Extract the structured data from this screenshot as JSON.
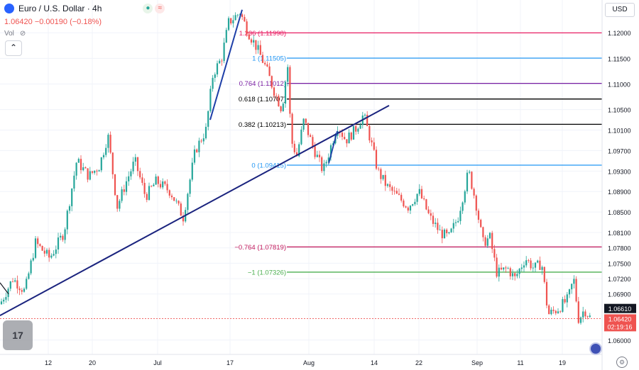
{
  "header": {
    "symbol": "Euro / U.S. Dollar · 4h",
    "price": "1.06420",
    "change": "−0.00190 (−0.18%)",
    "vol_label": "Vol",
    "currency": "USD",
    "badge_icons": [
      "market-open-icon",
      "wave-icon"
    ]
  },
  "chart_data": {
    "type": "candlestick",
    "x_tick_labels": [
      "12",
      "20",
      "Jul",
      "17",
      "Aug",
      "14",
      "22",
      "Sep",
      "11",
      "19"
    ],
    "y_tick_labels": [
      "1.12000",
      "1.11500",
      "1.11000",
      "1.10500",
      "1.10100",
      "1.09700",
      "1.09300",
      "1.08900",
      "1.08500",
      "1.08100",
      "1.07800",
      "1.07500",
      "1.07200",
      "1.06900",
      "1.06000"
    ],
    "y_ticks": [
      1.12,
      1.115,
      1.11,
      1.105,
      1.101,
      1.097,
      1.093,
      1.089,
      1.085,
      1.081,
      1.078,
      1.075,
      1.072,
      1.069,
      1.06
    ],
    "ylim": [
      1.0572,
      1.1264
    ],
    "current_price_label": "1.06420",
    "countdown": "02:19:16",
    "prev_price_label": "1.06610",
    "fib_levels": [
      {
        "label": "1.236 (1.11998)",
        "value": 1.11998,
        "color": "#e91e63"
      },
      {
        "label": "1 (1.11505)",
        "value": 1.11505,
        "color": "#2196f3"
      },
      {
        "label": "0.764 (1.11012)",
        "value": 1.11012,
        "color": "#7b1fa2"
      },
      {
        "label": "0.618 (1.10707)",
        "value": 1.10707,
        "color": "#000000"
      },
      {
        "label": "0.382 (1.10213)",
        "value": 1.10213,
        "color": "#000000"
      },
      {
        "label": "0 (1.09415)",
        "value": 1.09415,
        "color": "#2196f3"
      },
      {
        "label": "−0.764 (1.07819)",
        "value": 1.07819,
        "color": "#c2185b"
      },
      {
        "label": "−1 (1.07326)",
        "value": 1.07326,
        "color": "#4caf50"
      }
    ],
    "anchors": [
      [
        0,
        1.067
      ],
      [
        18,
        1.072
      ],
      [
        35,
        1.0695
      ],
      [
        50,
        1.079
      ],
      [
        70,
        1.076
      ],
      [
        90,
        1.081
      ],
      [
        108,
        1.095
      ],
      [
        125,
        1.092
      ],
      [
        140,
        1.094
      ],
      [
        152,
        1.1
      ],
      [
        165,
        1.086
      ],
      [
        178,
        1.091
      ],
      [
        190,
        1.095
      ],
      [
        205,
        1.088
      ],
      [
        220,
        1.091
      ],
      [
        240,
        1.089
      ],
      [
        258,
        1.084
      ],
      [
        275,
        1.097
      ],
      [
        290,
        1.101
      ],
      [
        300,
        1.112
      ],
      [
        312,
        1.115
      ],
      [
        322,
        1.122
      ],
      [
        338,
        1.124
      ],
      [
        350,
        1.12
      ],
      [
        362,
        1.117
      ],
      [
        375,
        1.113
      ],
      [
        385,
        1.109
      ],
      [
        397,
        1.105
      ],
      [
        405,
        1.114
      ],
      [
        410,
        1.099
      ],
      [
        418,
        1.096
      ],
      [
        428,
        1.103
      ],
      [
        440,
        1.098
      ],
      [
        455,
        1.093
      ],
      [
        462,
        1.096
      ],
      [
        475,
        1.102
      ],
      [
        487,
        1.099
      ],
      [
        500,
        1.101
      ],
      [
        512,
        1.104
      ],
      [
        522,
        1.099
      ],
      [
        532,
        1.093
      ],
      [
        545,
        1.09
      ],
      [
        560,
        1.088
      ],
      [
        575,
        1.086
      ],
      [
        590,
        1.089
      ],
      [
        605,
        1.084
      ],
      [
        620,
        1.081
      ],
      [
        632,
        1.08
      ],
      [
        645,
        1.084
      ],
      [
        660,
        1.093
      ],
      [
        670,
        1.087
      ],
      [
        680,
        1.079
      ],
      [
        690,
        1.08
      ],
      [
        700,
        1.073
      ],
      [
        715,
        1.074
      ],
      [
        725,
        1.072
      ],
      [
        740,
        1.076
      ],
      [
        752,
        1.074
      ],
      [
        763,
        1.075
      ],
      [
        772,
        1.065
      ],
      [
        785,
        1.066
      ],
      [
        800,
        1.068
      ],
      [
        808,
        1.072
      ],
      [
        815,
        1.064
      ],
      [
        823,
        1.066
      ],
      [
        832,
        1.0642
      ]
    ]
  },
  "ui": {
    "tv_logo": "17",
    "settings_icon": "gear-icon",
    "collapse_icon": "chevron-up-icon"
  }
}
